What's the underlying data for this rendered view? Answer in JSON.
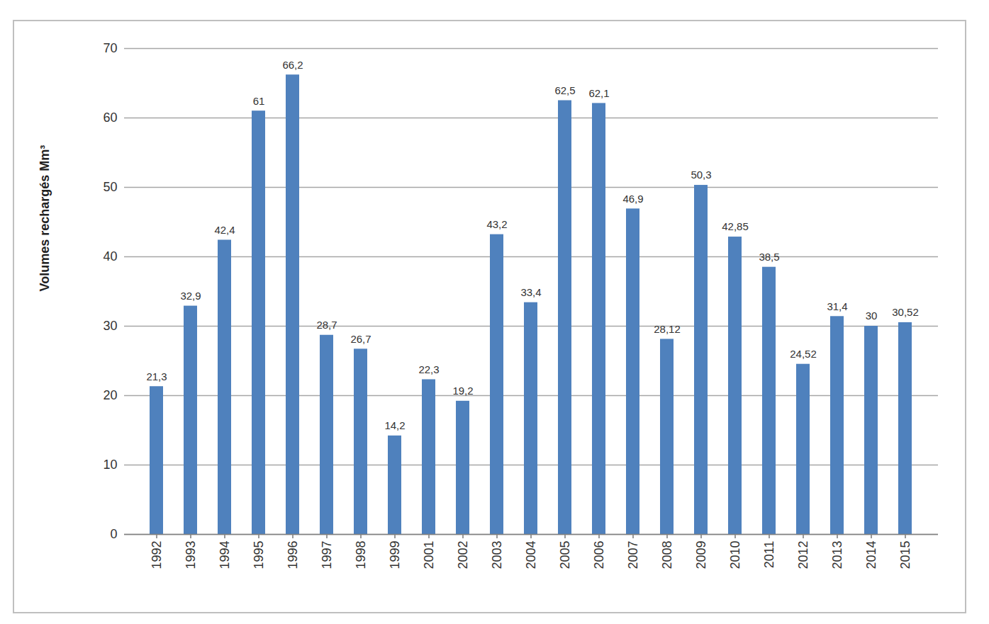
{
  "chart_data": {
    "type": "bar",
    "y_label": "Volumes rechargés Mm³",
    "categories": [
      "1992",
      "1993",
      "1994",
      "1995",
      "1996",
      "1997",
      "1998",
      "1999",
      "2001",
      "2002",
      "2003",
      "2004",
      "2005",
      "2006",
      "2007",
      "2008",
      "2009",
      "2010",
      "2011",
      "2012",
      "2013",
      "2014",
      "2015"
    ],
    "values": [
      21.3,
      32.9,
      42.4,
      61,
      66.2,
      28.7,
      26.7,
      14.2,
      22.3,
      19.2,
      43.2,
      33.4,
      62.5,
      62.1,
      46.9,
      28.12,
      50.3,
      42.85,
      38.5,
      24.52,
      31.4,
      30,
      30.52
    ],
    "value_labels": [
      "21,3",
      "32,9",
      "42,4",
      "61",
      "66,2",
      "28,7",
      "26,7",
      "14,2",
      "22,3",
      "19,2",
      "43,2",
      "33,4",
      "62,5",
      "62,1",
      "46,9",
      "28,12",
      "50,3",
      "42,85",
      "38,5",
      "24,52",
      "31,4",
      "30",
      "30,52"
    ],
    "color": "#4f81bd",
    "ylim": [
      0,
      70
    ],
    "yticks": [
      0,
      10,
      20,
      30,
      40,
      50,
      60,
      70
    ],
    "grid": true,
    "data_labels": true
  }
}
